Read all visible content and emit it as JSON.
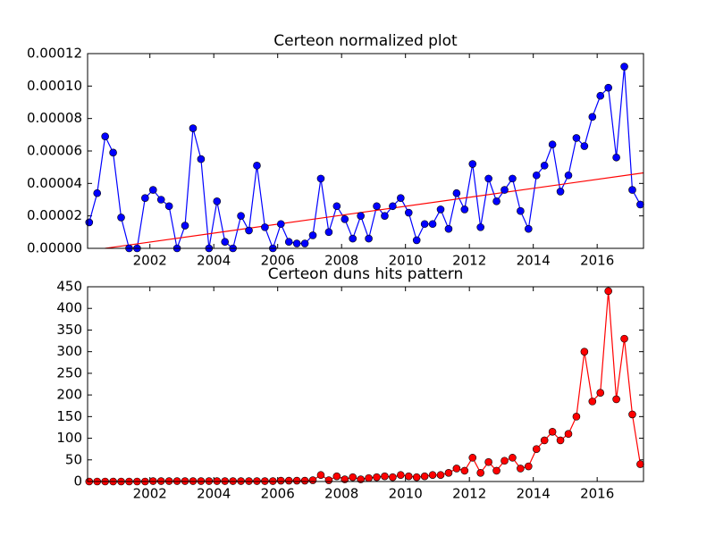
{
  "chart_data": [
    {
      "type": "line",
      "title": "Certeon normalized plot",
      "color": "#0000ff",
      "x": [
        2000.1,
        2000.35,
        2000.6,
        2000.85,
        2001.1,
        2001.35,
        2001.6,
        2001.85,
        2002.1,
        2002.35,
        2002.6,
        2002.85,
        2003.1,
        2003.35,
        2003.6,
        2003.85,
        2004.1,
        2004.35,
        2004.6,
        2004.85,
        2005.1,
        2005.35,
        2005.6,
        2005.85,
        2006.1,
        2006.35,
        2006.6,
        2006.85,
        2007.1,
        2007.35,
        2007.6,
        2007.85,
        2008.1,
        2008.35,
        2008.6,
        2008.85,
        2009.1,
        2009.35,
        2009.6,
        2009.85,
        2010.1,
        2010.35,
        2010.6,
        2010.85,
        2011.1,
        2011.35,
        2011.6,
        2011.85,
        2012.1,
        2012.35,
        2012.6,
        2012.85,
        2013.1,
        2013.35,
        2013.6,
        2013.85,
        2014.1,
        2014.35,
        2014.6,
        2014.85,
        2015.1,
        2015.35,
        2015.6,
        2015.85,
        2016.1,
        2016.35,
        2016.6,
        2016.85,
        2017.1,
        2017.35
      ],
      "values": [
        1.6e-05,
        3.4e-05,
        6.9e-05,
        5.9e-05,
        1.9e-05,
        0,
        0,
        3.1e-05,
        3.6e-05,
        3e-05,
        2.6e-05,
        0,
        1.4e-05,
        7.4e-05,
        5.5e-05,
        0,
        2.9e-05,
        4e-06,
        0,
        2e-05,
        1.1e-05,
        5.1e-05,
        1.3e-05,
        0,
        1.5e-05,
        4e-06,
        3e-06,
        3e-06,
        8e-06,
        4.3e-05,
        1e-05,
        2.6e-05,
        1.8e-05,
        6e-06,
        2e-05,
        6e-06,
        2.6e-05,
        2e-05,
        2.6e-05,
        3.1e-05,
        2.2e-05,
        5e-06,
        1.5e-05,
        1.5e-05,
        2.4e-05,
        1.2e-05,
        3.4e-05,
        2.4e-05,
        5.2e-05,
        1.3e-05,
        4.3e-05,
        2.9e-05,
        3.6e-05,
        4.3e-05,
        2.3e-05,
        1.2e-05,
        4.5e-05,
        5.1e-05,
        6.4e-05,
        3.5e-05,
        4.5e-05,
        6.8e-05,
        6.3e-05,
        8.1e-05,
        9.4e-05,
        9.9e-05,
        5.6e-05,
        0.000112,
        3.6e-05,
        2.7e-05
      ],
      "trend_line": {
        "x": [
          2000.6,
          2017.45
        ],
        "values": [
          0,
          4.65e-05
        ],
        "color": "#ff0000"
      },
      "xlim": [
        2000.05,
        2017.45
      ],
      "xticks": [
        2002,
        2004,
        2006,
        2008,
        2010,
        2012,
        2014,
        2016
      ],
      "ylim": [
        0,
        0.00012
      ],
      "yticks": [
        {
          "value": 0,
          "label": "0.00000"
        },
        {
          "value": 2e-05,
          "label": "0.00002"
        },
        {
          "value": 4e-05,
          "label": "0.00004"
        },
        {
          "value": 6e-05,
          "label": "0.00006"
        },
        {
          "value": 8e-05,
          "label": "0.00008"
        },
        {
          "value": 0.0001,
          "label": "0.00010"
        },
        {
          "value": 0.00012,
          "label": "0.00012"
        }
      ]
    },
    {
      "type": "line",
      "title": "Certeon duns hits pattern",
      "color": "#ff0000",
      "x": [
        2000.1,
        2000.35,
        2000.6,
        2000.85,
        2001.1,
        2001.35,
        2001.6,
        2001.85,
        2002.1,
        2002.35,
        2002.6,
        2002.85,
        2003.1,
        2003.35,
        2003.6,
        2003.85,
        2004.1,
        2004.35,
        2004.6,
        2004.85,
        2005.1,
        2005.35,
        2005.6,
        2005.85,
        2006.1,
        2006.35,
        2006.6,
        2006.85,
        2007.1,
        2007.35,
        2007.6,
        2007.85,
        2008.1,
        2008.35,
        2008.6,
        2008.85,
        2009.1,
        2009.35,
        2009.6,
        2009.85,
        2010.1,
        2010.35,
        2010.6,
        2010.85,
        2011.1,
        2011.35,
        2011.6,
        2011.85,
        2012.1,
        2012.35,
        2012.6,
        2012.85,
        2013.1,
        2013.35,
        2013.6,
        2013.85,
        2014.1,
        2014.35,
        2014.6,
        2014.85,
        2015.1,
        2015.35,
        2015.6,
        2015.85,
        2016.1,
        2016.35,
        2016.6,
        2016.85,
        2017.1,
        2017.35
      ],
      "values": [
        0,
        0,
        0,
        0,
        0,
        0,
        0,
        0,
        1,
        1,
        1,
        1,
        1,
        1,
        1,
        1,
        1,
        1,
        1,
        1,
        1,
        1,
        1,
        1,
        2,
        2,
        2,
        2,
        3,
        15,
        3,
        12,
        5,
        10,
        5,
        8,
        10,
        12,
        10,
        15,
        12,
        10,
        12,
        15,
        15,
        20,
        30,
        25,
        55,
        20,
        45,
        25,
        48,
        55,
        30,
        35,
        75,
        95,
        115,
        95,
        110,
        150,
        300,
        185,
        205,
        440,
        190,
        330,
        155,
        40
      ],
      "xlim": [
        2000.05,
        2017.45
      ],
      "xticks": [
        2002,
        2004,
        2006,
        2008,
        2010,
        2012,
        2014,
        2016
      ],
      "ylim": [
        0,
        450
      ],
      "yticks": [
        0,
        50,
        100,
        150,
        200,
        250,
        300,
        350,
        400,
        450
      ]
    }
  ]
}
